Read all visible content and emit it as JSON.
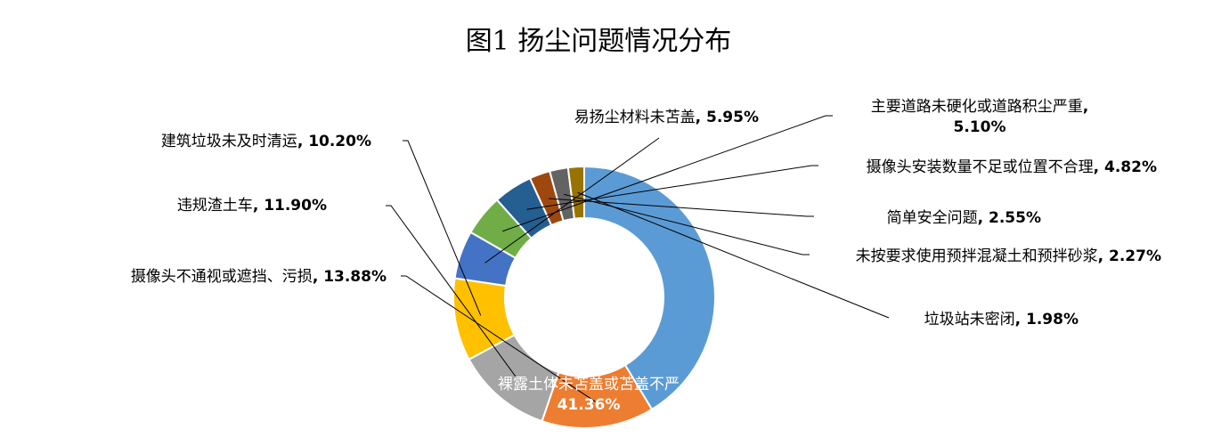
{
  "chart_data": {
    "type": "pie",
    "donut": true,
    "title": "图1  扬尘问题情况分布",
    "legend": "none",
    "slices": [
      {
        "label": "裸露土体未苫盖或苫盖不严",
        "value": 41.36,
        "value_text": "41.36%",
        "color": "#5B9BD5"
      },
      {
        "label": "摄像头不通视或遮挡、污损",
        "value": 13.88,
        "value_text": "13.88%",
        "color": "#ED7D31"
      },
      {
        "label": "违规渣土车",
        "value": 11.9,
        "value_text": "11.90%",
        "color": "#A5A5A5"
      },
      {
        "label": "建筑垃圾未及时清运",
        "value": 10.2,
        "value_text": "10.20%",
        "color": "#FFC000"
      },
      {
        "label": "易扬尘材料未苫盖",
        "value": 5.95,
        "value_text": "5.95%",
        "color": "#4472C4"
      },
      {
        "label": "主要道路未硬化或道路积尘严重",
        "value": 5.1,
        "value_text": "5.10%",
        "color": "#70AD47"
      },
      {
        "label": "摄像头安装数量不足或位置不合理",
        "value": 4.82,
        "value_text": "4.82%",
        "color": "#255E91"
      },
      {
        "label": "简单安全问题",
        "value": 2.55,
        "value_text": "2.55%",
        "color": "#9E480E"
      },
      {
        "label": "未按要求使用预拌混凝土和预拌砂浆",
        "value": 2.27,
        "value_text": "2.27%",
        "color": "#636363"
      },
      {
        "label": "垃圾站未密闭",
        "value": 1.98,
        "value_text": "1.98%",
        "color": "#997300"
      }
    ]
  }
}
